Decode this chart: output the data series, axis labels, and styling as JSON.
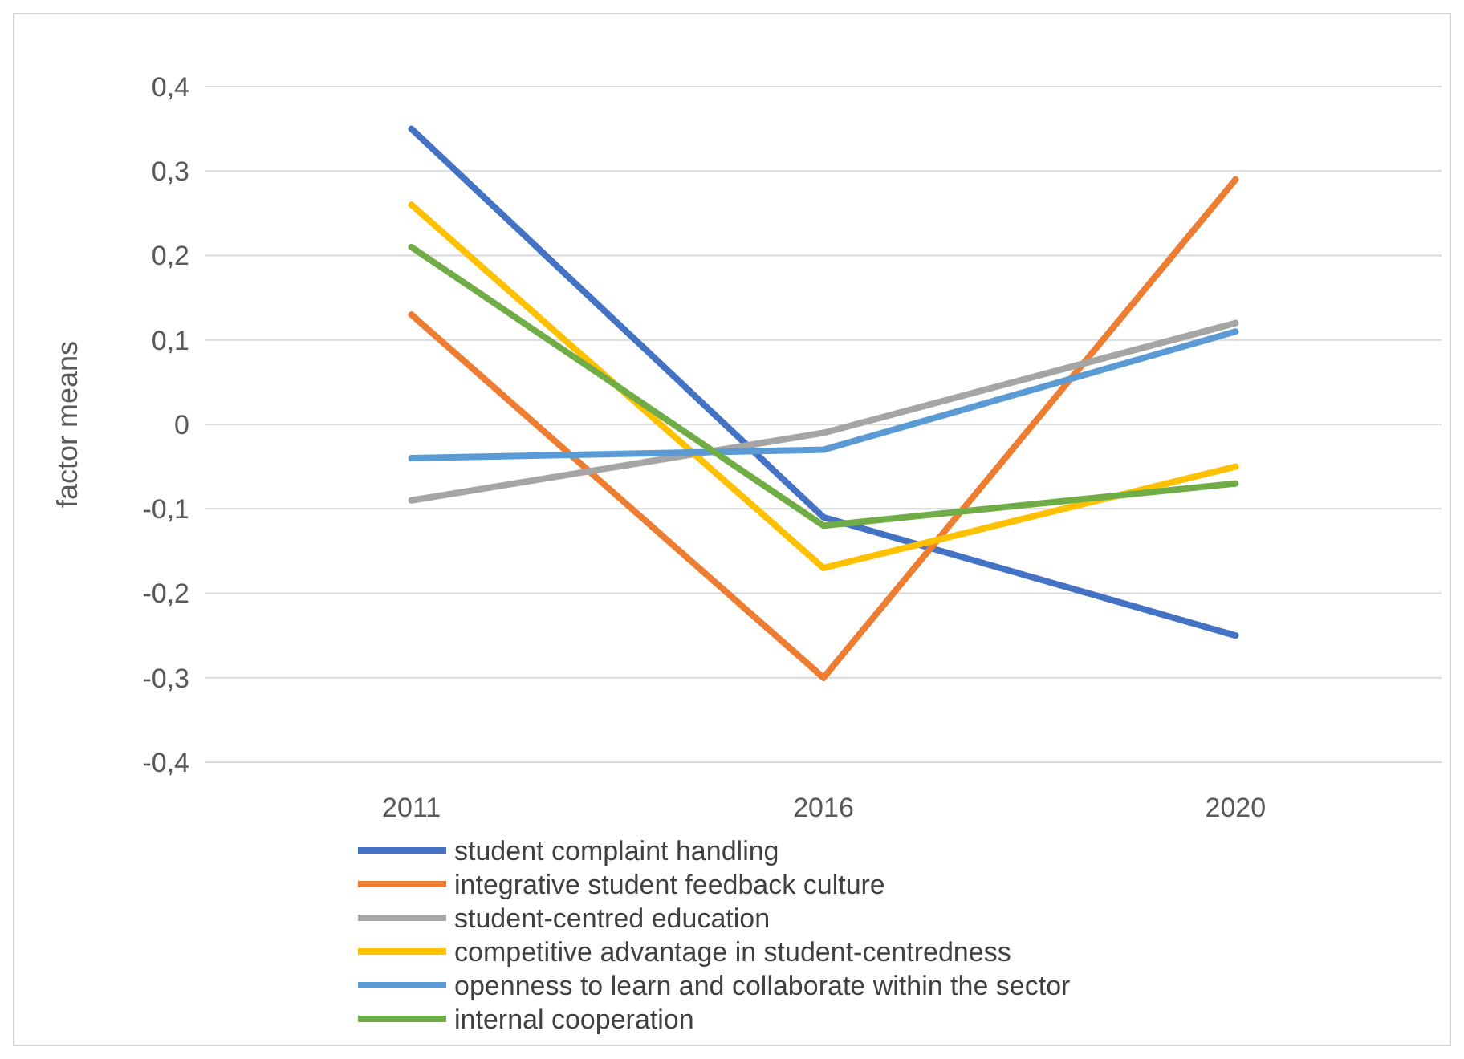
{
  "chart_data": {
    "type": "line",
    "ylabel": "factor means",
    "categories": [
      "2011",
      "2016",
      "2020"
    ],
    "series": [
      {
        "name": "student complaint handling",
        "color": "#4472c4",
        "values": [
          0.35,
          -0.11,
          -0.25
        ]
      },
      {
        "name": "integrative student feedback culture",
        "color": "#ed7d31",
        "values": [
          0.13,
          -0.3,
          0.29
        ]
      },
      {
        "name": "student-centred education",
        "color": "#a5a5a5",
        "values": [
          -0.09,
          -0.01,
          0.12
        ]
      },
      {
        "name": "competitive advantage in student-centredness",
        "color": "#ffc000",
        "values": [
          0.26,
          -0.17,
          -0.05
        ]
      },
      {
        "name": "openness to learn and collaborate within the sector",
        "color": "#5b9bd5",
        "values": [
          -0.04,
          -0.03,
          0.11
        ]
      },
      {
        "name": "internal cooperation",
        "color": "#70ad47",
        "values": [
          0.21,
          -0.12,
          -0.07
        ]
      }
    ],
    "ylim": [
      -0.4,
      0.4
    ],
    "yticks": [
      {
        "value": -0.4,
        "label": "-0,4"
      },
      {
        "value": -0.3,
        "label": "-0,3"
      },
      {
        "value": -0.2,
        "label": "-0,2"
      },
      {
        "value": -0.1,
        "label": "-0,1"
      },
      0,
      {
        "value": 0.1,
        "label": "0,1"
      },
      {
        "value": 0.2,
        "label": "0,2"
      },
      {
        "value": 0.3,
        "label": "0,3"
      },
      {
        "value": 0.4,
        "label": "0,4"
      }
    ],
    "grid": "y",
    "legend": "bottom",
    "marker": "none",
    "line_style": "solid"
  }
}
